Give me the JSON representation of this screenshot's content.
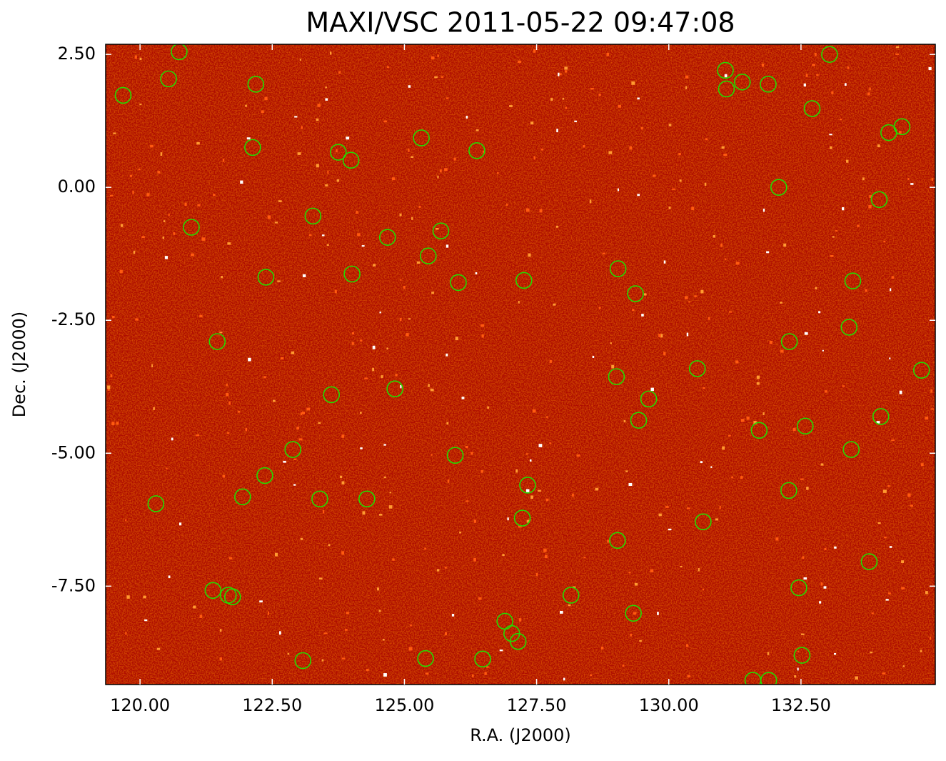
{
  "chart_data": {
    "type": "scatter",
    "title": "MAXI/VSC 2011-05-22 09:47:08",
    "x_label": "R.A. (J2000)",
    "y_label": "Dec. (J2000)",
    "color": "#22dd00",
    "xlim": [
      119.35,
      135.04
    ],
    "ylim": [
      -9.35,
      2.69
    ],
    "xticks": [
      {
        "value": 120,
        "label": "120.00"
      },
      {
        "value": 122.5,
        "label": "122.50"
      },
      {
        "value": 125,
        "label": "125.00"
      },
      {
        "value": 127.5,
        "label": "127.50"
      },
      {
        "value": 130,
        "label": "130.00"
      },
      {
        "value": 132.5,
        "label": "132.50"
      }
    ],
    "yticks": [
      {
        "value": 2.5,
        "label": "2.50"
      },
      {
        "value": 0,
        "label": "0.00"
      },
      {
        "value": -2.5,
        "label": "-2.50"
      },
      {
        "value": -5,
        "label": "-5.00"
      },
      {
        "value": -7.5,
        "label": "-7.50"
      }
    ],
    "x": [
      119.68,
      120.54,
      120.74,
      122.19,
      122.13,
      120.97,
      122.38,
      121.46,
      123.75,
      123.99,
      123.27,
      124.68,
      125.45,
      125.69,
      125.32,
      126.37,
      124.01,
      126.02,
      127.26,
      129.04,
      129.37,
      131.07,
      131.09,
      131.39,
      131.88,
      133.04,
      132.71,
      134.41,
      134.16,
      132.08,
      133.98,
      133.48,
      133.41,
      132.28,
      134.78,
      130.54,
      129.01,
      129.62,
      129.43,
      134.01,
      131.71,
      132.58,
      133.45,
      132.27,
      130.65,
      129.03,
      133.79,
      132.46,
      129.33,
      132.52,
      131.59,
      131.89,
      128.15,
      127.33,
      127.23,
      126.9,
      127.03,
      127.15,
      125.4,
      126.48,
      123.08,
      121.38,
      121.67,
      121.75,
      120.3,
      121.94,
      122.36,
      122.89,
      123.4,
      124.29,
      125.96,
      124.82,
      123.62
    ],
    "y": [
      1.73,
      2.04,
      2.55,
      1.94,
      0.75,
      -0.75,
      -1.69,
      -2.9,
      0.66,
      0.51,
      -0.54,
      -0.94,
      -1.29,
      -0.82,
      0.93,
      0.69,
      -1.63,
      -1.79,
      -1.75,
      -1.53,
      -2.0,
      2.2,
      1.85,
      1.98,
      1.94,
      2.5,
      1.48,
      1.14,
      1.03,
      0.0,
      -0.23,
      -1.76,
      -2.63,
      -2.9,
      -3.44,
      -3.41,
      -3.56,
      -3.98,
      -4.38,
      -4.31,
      -4.57,
      -4.49,
      -4.93,
      -5.7,
      -6.29,
      -6.64,
      -7.04,
      -7.53,
      -8.01,
      -8.8,
      -9.27,
      -9.27,
      -7.67,
      -5.6,
      -6.22,
      -8.16,
      -8.39,
      -8.54,
      -8.86,
      -8.87,
      -8.9,
      -7.58,
      -7.67,
      -7.7,
      -5.95,
      -5.82,
      -5.42,
      -4.93,
      -5.86,
      -5.86,
      -5.04,
      -3.79,
      -3.9
    ]
  }
}
